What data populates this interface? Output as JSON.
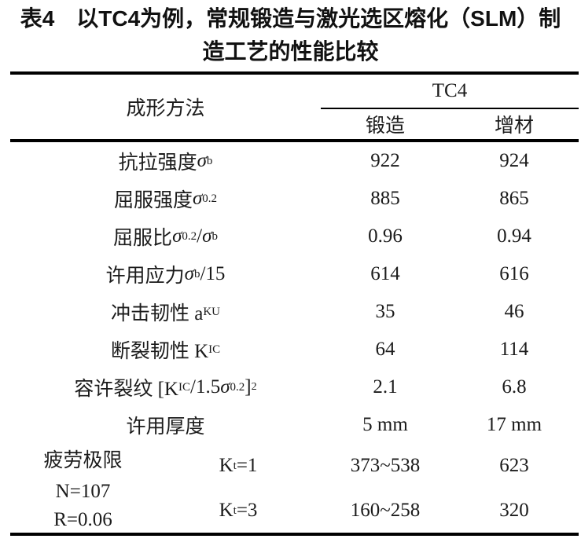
{
  "title": {
    "line1": "表4　以TC4为例，常规锻造与激光选区熔化（SLM）制",
    "line2": "造工艺的性能比较"
  },
  "table": {
    "header": {
      "stub": "成形方法",
      "group": "TC4",
      "col_forge": "锻造",
      "col_slm": "增材"
    },
    "rows": [
      {
        "label": [
          {
            "t": "抗拉强度 "
          },
          {
            "t": "σ",
            "s": "i"
          },
          {
            "t": "b",
            "s": "sub"
          }
        ],
        "forge": "922",
        "slm": "924"
      },
      {
        "label": [
          {
            "t": "屈服强度 "
          },
          {
            "t": "σ",
            "s": "i"
          },
          {
            "t": "0.2",
            "s": "sub"
          }
        ],
        "forge": "885",
        "slm": "865"
      },
      {
        "label": [
          {
            "t": "屈服比 "
          },
          {
            "t": "σ",
            "s": "i"
          },
          {
            "t": "0.2",
            "s": "sub"
          },
          {
            "t": "/"
          },
          {
            "t": "σ",
            "s": "i"
          },
          {
            "t": "b",
            "s": "sub"
          }
        ],
        "forge": "0.96",
        "slm": "0.94"
      },
      {
        "label": [
          {
            "t": "许用应力 "
          },
          {
            "t": "σ",
            "s": "i"
          },
          {
            "t": "b",
            "s": "sub"
          },
          {
            "t": "/15"
          }
        ],
        "forge": "614",
        "slm": "616"
      },
      {
        "label": [
          {
            "t": "冲击韧性  a"
          },
          {
            "t": "KU",
            "s": "sub"
          }
        ],
        "forge": "35",
        "slm": "46"
      },
      {
        "label": [
          {
            "t": "断裂韧性  K"
          },
          {
            "t": "IC",
            "s": "sub"
          }
        ],
        "forge": "64",
        "slm": "114"
      },
      {
        "label": [
          {
            "t": "容许裂纹 [K"
          },
          {
            "t": "IC",
            "s": "sub"
          },
          {
            "t": "/1.5"
          },
          {
            "t": "σ",
            "s": "i"
          },
          {
            "t": "0.2",
            "s": "sub"
          },
          {
            "t": "]"
          },
          {
            "t": "2",
            "s": "sup"
          }
        ],
        "forge": "2.1",
        "slm": "6.8"
      },
      {
        "label": [
          {
            "t": "许用厚度"
          }
        ],
        "forge": "5 mm",
        "slm": "17 mm"
      }
    ],
    "fatigue": {
      "label": "疲劳极限",
      "n": "N=107",
      "r": "R=0.06",
      "rows": [
        {
          "kt": [
            {
              "t": "K"
            },
            {
              "t": "t",
              "s": "sub"
            },
            {
              "t": "=1"
            }
          ],
          "forge": "373~538",
          "slm": "623"
        },
        {
          "kt": [
            {
              "t": "K"
            },
            {
              "t": "t",
              "s": "sub"
            },
            {
              "t": "=3"
            }
          ],
          "forge": "160~258",
          "slm": "320"
        }
      ]
    }
  },
  "colors": {
    "background": "#ffffff",
    "text": "#1b1b1b",
    "rule": "#000000"
  }
}
